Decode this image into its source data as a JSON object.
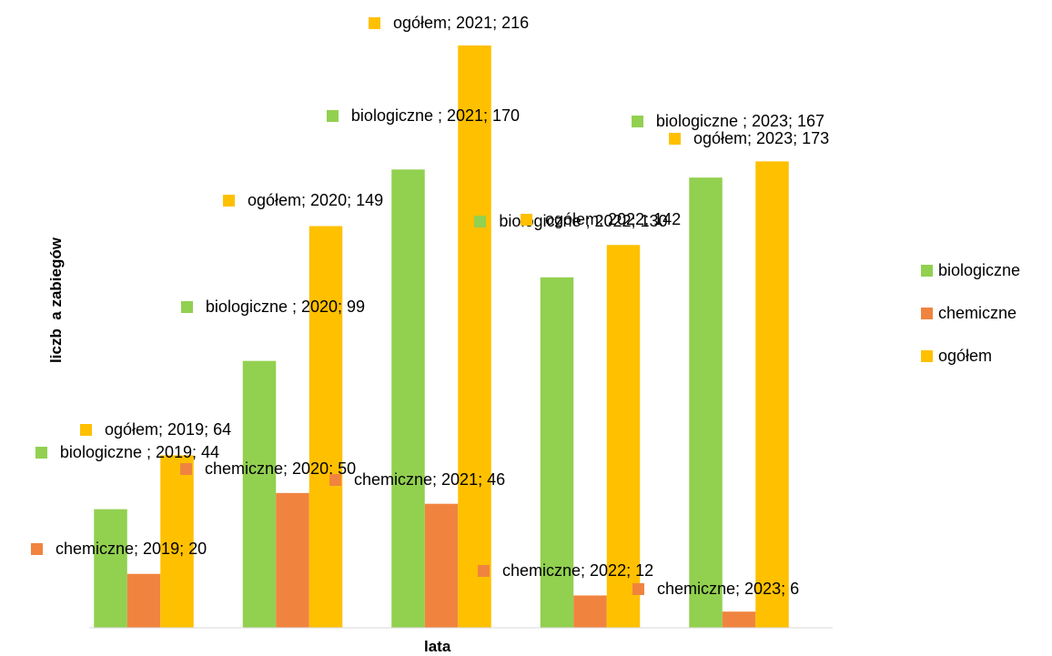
{
  "chart_data": {
    "type": "bar",
    "categories": [
      "2019",
      "2020",
      "2021",
      "2022",
      "2023"
    ],
    "series": [
      {
        "name": "biologiczne",
        "color": "#92d050",
        "values": [
          44,
          99,
          170,
          130,
          167
        ],
        "value_labels": [
          "biologiczne ; 2019; 44",
          "biologiczne ; 2020; 99",
          "biologiczne ; 2021; 170",
          "biologiczne ; 2022; 130",
          "biologiczne ; 2023; 167"
        ]
      },
      {
        "name": "chemiczne",
        "color": "#f0843f",
        "values": [
          20,
          50,
          46,
          12,
          6
        ],
        "value_labels": [
          "chemiczne; 2019; 20",
          "chemiczne; 2020; 50",
          "chemiczne; 2021; 46",
          "chemiczne; 2022; 12",
          "chemiczne; 2023; 6"
        ]
      },
      {
        "name": "ogółem",
        "color": "#ffc000",
        "values": [
          64,
          149,
          216,
          142,
          173
        ],
        "value_labels": [
          "ogółem; 2019; 64",
          "ogółem; 2020; 149",
          "ogółem; 2021; 216",
          "ogółem; 2022; 142",
          "ogółem; 2023; 173"
        ]
      }
    ],
    "x_label": "lata",
    "y_label": "liczb  a zabiegów",
    "ylim": [
      0,
      230
    ],
    "legend": "right"
  }
}
